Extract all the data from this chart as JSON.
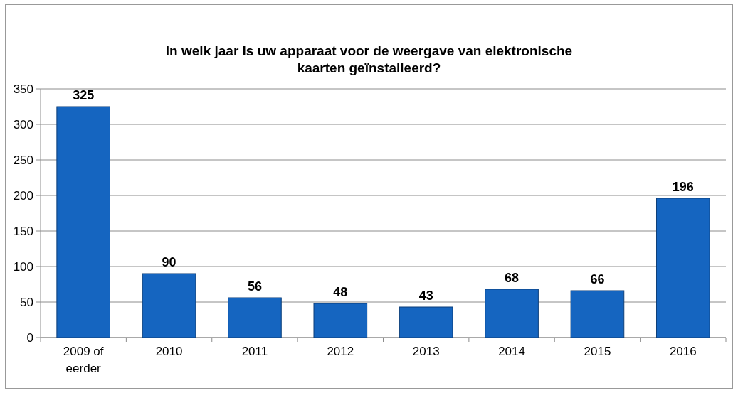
{
  "chart_data": {
    "type": "bar",
    "title": "In welk jaar is uw apparaat voor de weergave van elektronische kaarten geïnstalleerd?",
    "categories": [
      "2009 of eerder",
      "2010",
      "2011",
      "2012",
      "2013",
      "2014",
      "2015",
      "2016"
    ],
    "values": [
      325,
      90,
      56,
      48,
      43,
      68,
      66,
      196
    ],
    "color": "#1565c0",
    "ylim": [
      0,
      350
    ],
    "yticks": [
      0,
      50,
      100,
      150,
      200,
      250,
      300,
      350
    ],
    "grid": "y",
    "data_labels": true
  }
}
